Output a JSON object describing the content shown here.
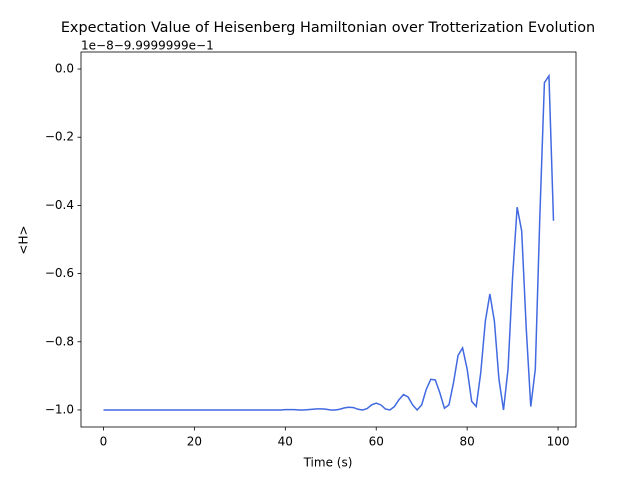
{
  "chart_data": {
    "type": "line",
    "title": "Expectation Value of Heisenberg Hamiltonian over Trotterization Evolution",
    "offset_text": "1e−8−9.9999999e−1",
    "xlabel": "Time (s)",
    "ylabel": "<H>",
    "color": "#4169e1",
    "x": [
      0,
      1,
      2,
      3,
      4,
      5,
      6,
      7,
      8,
      9,
      10,
      11,
      12,
      13,
      14,
      15,
      16,
      17,
      18,
      19,
      20,
      21,
      22,
      23,
      24,
      25,
      26,
      27,
      28,
      29,
      30,
      31,
      32,
      33,
      34,
      35,
      36,
      37,
      38,
      39,
      40,
      41,
      42,
      43,
      44,
      45,
      46,
      47,
      48,
      49,
      50,
      51,
      52,
      53,
      54,
      55,
      56,
      57,
      58,
      59,
      60,
      61,
      62,
      63,
      64,
      65,
      66,
      67,
      68,
      69,
      70,
      71,
      72,
      73,
      74,
      75,
      76,
      77,
      78,
      79,
      80,
      81,
      82,
      83,
      84,
      85,
      86,
      87,
      88,
      89,
      90,
      91,
      92,
      93,
      94,
      95,
      96,
      97,
      98,
      99
    ],
    "values": [
      -1.0,
      -1.0,
      -1.0,
      -1.0,
      -1.0,
      -1.0,
      -1.0,
      -1.0,
      -1.0,
      -1.0,
      -1.0,
      -1.0,
      -1.0,
      -1.0,
      -1.0,
      -1.0,
      -1.0,
      -1.0,
      -1.0,
      -1.0,
      -1.0,
      -1.0,
      -1.0,
      -1.0,
      -1.0,
      -1.0,
      -1.0,
      -1.0,
      -1.0,
      -1.0,
      -1.0,
      -1.0,
      -1.0,
      -1.0,
      -1.0,
      -1.0,
      -1.0,
      -1.0,
      -1.0,
      -1.0,
      -0.999,
      -0.999,
      -0.999,
      -1.0,
      -1.0,
      -0.999,
      -0.998,
      -0.997,
      -0.997,
      -0.998,
      -1.0,
      -1.0,
      -0.998,
      -0.994,
      -0.992,
      -0.993,
      -0.998,
      -1.0,
      -0.996,
      -0.985,
      -0.98,
      -0.985,
      -0.997,
      -1.0,
      -0.99,
      -0.97,
      -0.955,
      -0.962,
      -0.985,
      -1.0,
      -0.985,
      -0.94,
      -0.91,
      -0.912,
      -0.95,
      -0.995,
      -0.985,
      -0.92,
      -0.84,
      -0.818,
      -0.88,
      -0.975,
      -0.99,
      -0.89,
      -0.74,
      -0.66,
      -0.74,
      -0.91,
      -1.0,
      -0.88,
      -0.61,
      -0.405,
      -0.475,
      -0.76,
      -0.99,
      -0.88,
      -0.43,
      -0.04,
      -0.02,
      -0.445
    ],
    "xlim": [
      -4.95,
      103.95
    ],
    "xticks": [
      0,
      20,
      40,
      60,
      80,
      100
    ],
    "ylim": [
      -1.05,
      0.05
    ],
    "yticks": [
      {
        "value": -1.0,
        "label": "−1.0"
      },
      {
        "value": -0.8,
        "label": "−0.8"
      },
      {
        "value": -0.6,
        "label": "−0.6"
      },
      {
        "value": -0.4,
        "label": "−0.4"
      },
      {
        "value": -0.2,
        "label": "−0.2"
      },
      {
        "value": 0.0,
        "label": "0.0"
      }
    ]
  }
}
